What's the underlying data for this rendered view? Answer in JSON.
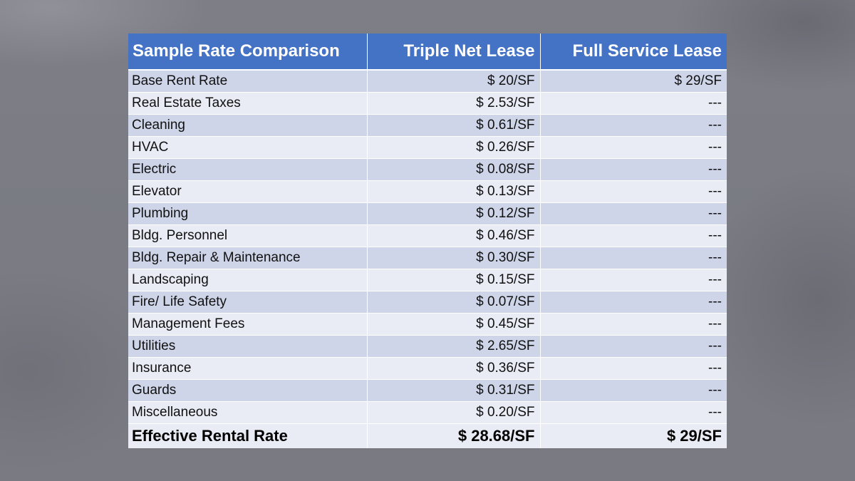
{
  "table": {
    "headers": [
      "Sample Rate Comparison",
      "Triple Net Lease",
      "Full Service Lease"
    ],
    "rows": [
      {
        "item": "Base Rent Rate",
        "triple_net": "$ 20/SF",
        "full_service": "$ 29/SF"
      },
      {
        "item": "Real Estate Taxes",
        "triple_net": "$ 2.53/SF",
        "full_service": "---"
      },
      {
        "item": "Cleaning",
        "triple_net": "$ 0.61/SF",
        "full_service": "---"
      },
      {
        "item": "HVAC",
        "triple_net": "$ 0.26/SF",
        "full_service": "---"
      },
      {
        "item": "Electric",
        "triple_net": "$ 0.08/SF",
        "full_service": "---"
      },
      {
        "item": "Elevator",
        "triple_net": "$ 0.13/SF",
        "full_service": "---"
      },
      {
        "item": "Plumbing",
        "triple_net": "$ 0.12/SF",
        "full_service": "---"
      },
      {
        "item": "Bldg. Personnel",
        "triple_net": "$ 0.46/SF",
        "full_service": "---"
      },
      {
        "item": "Bldg. Repair & Maintenance",
        "triple_net": "$ 0.30/SF",
        "full_service": "---"
      },
      {
        "item": "Landscaping",
        "triple_net": "$ 0.15/SF",
        "full_service": "---"
      },
      {
        "item": "Fire/ Life Safety",
        "triple_net": "$ 0.07/SF",
        "full_service": "---"
      },
      {
        "item": "Management Fees",
        "triple_net": "$ 0.45/SF",
        "full_service": "---"
      },
      {
        "item": "Utilities",
        "triple_net": "$ 2.65/SF",
        "full_service": "---"
      },
      {
        "item": "Insurance",
        "triple_net": "$ 0.36/SF",
        "full_service": "---"
      },
      {
        "item": "Guards",
        "triple_net": "$ 0.31/SF",
        "full_service": "---"
      },
      {
        "item": "Miscellaneous",
        "triple_net": "$ 0.20/SF",
        "full_service": "---"
      }
    ],
    "total": {
      "item": "Effective Rental Rate",
      "triple_net": "$ 28.68/SF",
      "full_service": "$ 29/SF"
    }
  },
  "colors": {
    "header_bg": "#4472c4",
    "header_text": "#ffffff",
    "row_band_dark": "#cfd5e8",
    "row_band_light": "#e9ebf5",
    "background": "#7a7b83"
  }
}
